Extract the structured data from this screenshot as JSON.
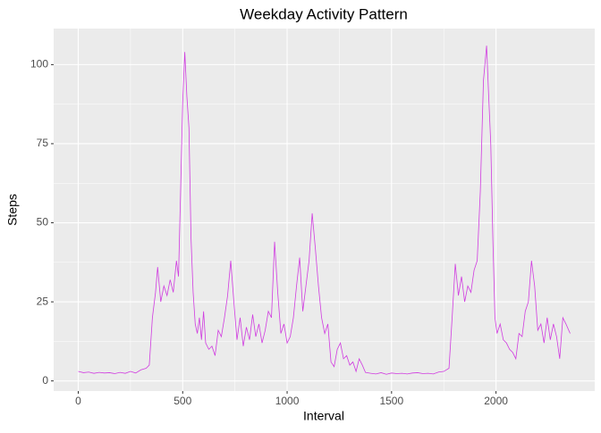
{
  "chart_data": {
    "type": "line",
    "title": "Weekday Activity Pattern",
    "x_label": "Interval",
    "y_label": "Steps",
    "x": [
      0,
      25,
      50,
      75,
      100,
      125,
      150,
      175,
      200,
      225,
      250,
      275,
      300,
      325,
      340,
      355,
      370,
      380,
      395,
      410,
      425,
      440,
      455,
      470,
      480,
      490,
      500,
      510,
      520,
      530,
      540,
      550,
      560,
      570,
      580,
      590,
      600,
      610,
      625,
      640,
      655,
      670,
      685,
      700,
      715,
      730,
      745,
      760,
      775,
      790,
      805,
      820,
      835,
      850,
      865,
      880,
      895,
      910,
      925,
      940,
      955,
      970,
      985,
      1000,
      1015,
      1030,
      1045,
      1060,
      1075,
      1090,
      1105,
      1120,
      1135,
      1150,
      1165,
      1180,
      1195,
      1210,
      1225,
      1240,
      1255,
      1270,
      1285,
      1300,
      1315,
      1330,
      1345,
      1360,
      1375,
      1400,
      1425,
      1450,
      1475,
      1500,
      1525,
      1550,
      1575,
      1600,
      1625,
      1650,
      1675,
      1700,
      1725,
      1750,
      1775,
      1790,
      1805,
      1820,
      1835,
      1850,
      1865,
      1880,
      1895,
      1910,
      1925,
      1940,
      1955,
      1965,
      1975,
      1985,
      1995,
      2005,
      2020,
      2035,
      2050,
      2065,
      2080,
      2095,
      2110,
      2125,
      2140,
      2155,
      2170,
      2185,
      2200,
      2215,
      2230,
      2245,
      2260,
      2275,
      2290,
      2305,
      2320,
      2335,
      2355
    ],
    "values": [
      3,
      2.6,
      2.8,
      2.4,
      2.7,
      2.5,
      2.6,
      2.3,
      2.7,
      2.4,
      3,
      2.5,
      3.5,
      4,
      5,
      20,
      28,
      36,
      25,
      30,
      27,
      32,
      28,
      38,
      33,
      60,
      88,
      104,
      90,
      80,
      45,
      28,
      18,
      15,
      20,
      13,
      22,
      12,
      10,
      11,
      8,
      16,
      14,
      20,
      27,
      38,
      25,
      13,
      20,
      11,
      17,
      13,
      21,
      14,
      18,
      12,
      16,
      22,
      20,
      44,
      28,
      15,
      18,
      12,
      14,
      20,
      30,
      39,
      22,
      30,
      38,
      53,
      42,
      30,
      20,
      15,
      18,
      6,
      4.5,
      10,
      12,
      7,
      8,
      5,
      6,
      3,
      7,
      5,
      2.7,
      2.4,
      2.2,
      2.6,
      2.1,
      2.5,
      2.3,
      2.4,
      2.2,
      2.5,
      2.6,
      2.3,
      2.4,
      2.2,
      2.8,
      3,
      4,
      20,
      37,
      27,
      33,
      25,
      30,
      28,
      35,
      38,
      60,
      95,
      106,
      90,
      75,
      45,
      20,
      15,
      18,
      13,
      12,
      10,
      9,
      7,
      15,
      14,
      22,
      25,
      38,
      30,
      16,
      18,
      12,
      20,
      13,
      18,
      14,
      7,
      20,
      18,
      15
    ],
    "color": "#d03ce0",
    "xlim": [
      -117.75,
      2472.75
    ],
    "xticks": [
      0,
      500,
      1000,
      1500,
      2000
    ],
    "ylim": [
      -3.2,
      111.4
    ],
    "yticks": [
      0,
      25,
      50,
      75,
      100
    ],
    "grid": true
  }
}
